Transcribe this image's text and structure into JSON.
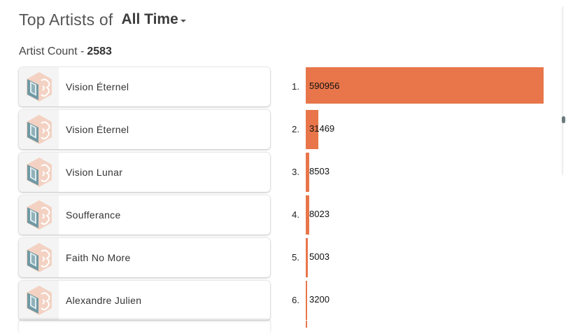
{
  "header": {
    "title": "Top Artists of",
    "range_selected": "All Time"
  },
  "summary": {
    "label": "Artist Count -",
    "value": "2583"
  },
  "colors": {
    "bar": "#e8764a",
    "avatar_teal": "#6f99a3",
    "avatar_peach": "#f3b79b"
  },
  "artists": [
    {
      "rank": "1.",
      "name": "Vision Éternel",
      "plays": "590956"
    },
    {
      "rank": "2.",
      "name": "Vision Éternel",
      "plays": "31469"
    },
    {
      "rank": "3.",
      "name": "Vision Lunar",
      "plays": "8503"
    },
    {
      "rank": "4.",
      "name": "Soufferance",
      "plays": "8023"
    },
    {
      "rank": "5.",
      "name": "Faith No More",
      "plays": "5003"
    },
    {
      "rank": "6.",
      "name": "Alexandre Julien",
      "plays": "3200"
    }
  ],
  "chart_data": {
    "type": "bar",
    "categories": [
      "Vision Éternel",
      "Vision Éternel",
      "Vision Lunar",
      "Soufferance",
      "Faith No More",
      "Alexandre Julien"
    ],
    "values": [
      590956,
      31469,
      8503,
      8023,
      5003,
      3200
    ],
    "orientation": "horizontal"
  }
}
